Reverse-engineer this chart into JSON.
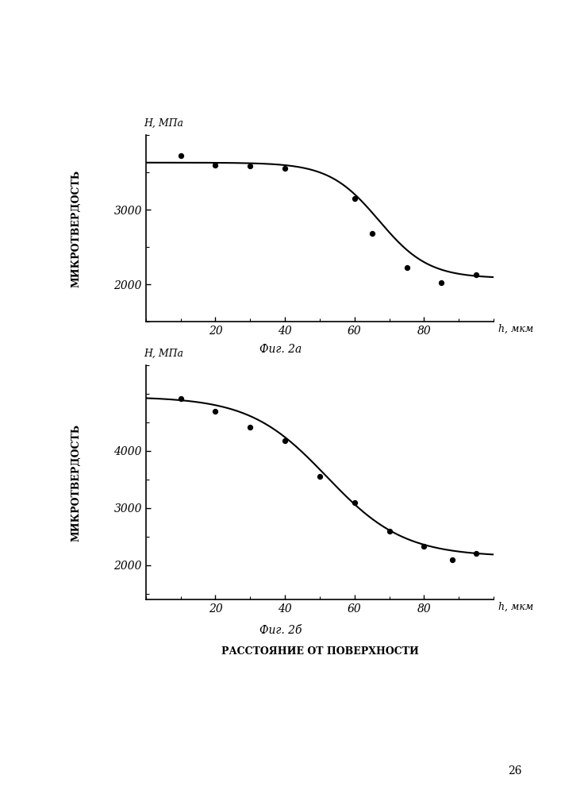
{
  "fig2a": {
    "scatter_x": [
      10,
      20,
      30,
      40,
      60,
      65,
      75,
      85,
      95
    ],
    "scatter_y": [
      3720,
      3600,
      3580,
      3550,
      3150,
      2680,
      2220,
      2020,
      2130
    ],
    "curve_params": {
      "L": 1550,
      "k": 0.14,
      "x0": 67,
      "base": 2080
    },
    "ylabel": "H, МПа",
    "yticks": [
      2000,
      3000
    ],
    "ylim": [
      1500,
      4000
    ],
    "xlim": [
      0,
      100
    ],
    "xticks": [
      20,
      40,
      60,
      80
    ],
    "xlabel_h": "h, мкм",
    "xlabel_main": "РАССТОЯНИЕ ОТ ПОВЕРХНОСТИ",
    "caption": "Фиг. 2а"
  },
  "fig2b": {
    "scatter_x": [
      10,
      20,
      30,
      40,
      50,
      60,
      70,
      80,
      88,
      95
    ],
    "scatter_y": [
      4920,
      4700,
      4420,
      4180,
      3550,
      3100,
      2600,
      2330,
      2100,
      2200
    ],
    "curve_params": {
      "L": 2800,
      "k": 0.09,
      "x0": 52,
      "base": 2150
    },
    "ylabel": "H, МПа",
    "yticks": [
      2000,
      3000,
      4000
    ],
    "ylim": [
      1400,
      5500
    ],
    "xlim": [
      0,
      100
    ],
    "xticks": [
      20,
      40,
      60,
      80
    ],
    "xlabel_h": "h, мкм",
    "xlabel_main": "РАССТОЯНИЕ ОТ ПОВЕРХНОСТИ",
    "caption": "Фиг. 2б"
  },
  "ylabel_rotated": "МИКРОТВЕРДОСТЬ",
  "background_color": "#ffffff",
  "line_color": "#000000",
  "scatter_color": "#000000",
  "page_number": "26"
}
